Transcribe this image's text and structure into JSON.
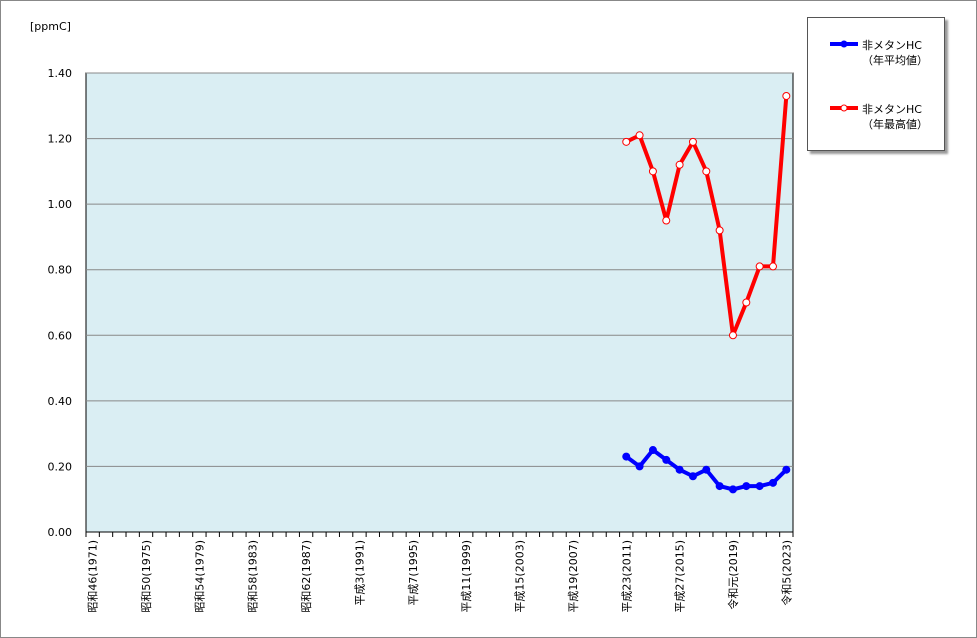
{
  "chart_data": {
    "type": "line",
    "y_unit_label": "[ppmC]",
    "categories": [
      "昭和46(1971)",
      null,
      null,
      null,
      "昭和50(1975)",
      null,
      null,
      null,
      "昭和54(1979)",
      null,
      null,
      null,
      "昭和58(1983)",
      null,
      null,
      null,
      "昭和62(1987)",
      null,
      null,
      null,
      "平成3(1991)",
      null,
      null,
      null,
      "平成7(1995)",
      null,
      null,
      null,
      "平成11(1999)",
      null,
      null,
      null,
      "平成15(2003)",
      null,
      null,
      null,
      "平成19(2007)",
      null,
      null,
      null,
      "平成23(2011)",
      null,
      null,
      null,
      "平成27(2015)",
      null,
      null,
      null,
      "令和元(2019)",
      null,
      null,
      null,
      "令和5(2023)"
    ],
    "series": [
      {
        "name": "非メタンHC\n（年平均値）",
        "color": "#0000ff",
        "marker": "filled",
        "values": [
          null,
          null,
          null,
          null,
          null,
          null,
          null,
          null,
          null,
          null,
          null,
          null,
          null,
          null,
          null,
          null,
          null,
          null,
          null,
          null,
          null,
          null,
          null,
          null,
          null,
          null,
          null,
          null,
          null,
          null,
          null,
          null,
          null,
          null,
          null,
          null,
          null,
          null,
          null,
          null,
          0.23,
          0.2,
          0.25,
          0.22,
          0.19,
          0.17,
          0.19,
          0.14,
          0.13,
          0.14,
          0.14,
          0.15,
          0.19
        ]
      },
      {
        "name": "非メタンHC\n（年最高値）",
        "color": "#ff0000",
        "marker": "open",
        "values": [
          null,
          null,
          null,
          null,
          null,
          null,
          null,
          null,
          null,
          null,
          null,
          null,
          null,
          null,
          null,
          null,
          null,
          null,
          null,
          null,
          null,
          null,
          null,
          null,
          null,
          null,
          null,
          null,
          null,
          null,
          null,
          null,
          null,
          null,
          null,
          null,
          null,
          null,
          null,
          null,
          1.19,
          1.21,
          1.1,
          0.95,
          1.12,
          1.19,
          1.1,
          0.92,
          0.6,
          0.7,
          0.81,
          0.81,
          1.33
        ]
      }
    ],
    "ylim": [
      0,
      1.4
    ],
    "yticks": [
      {
        "value": 0,
        "label": "0.00"
      },
      {
        "value": 0.2,
        "label": "0.20"
      },
      {
        "value": 0.4,
        "label": "0.40"
      },
      {
        "value": 0.6,
        "label": "0.60"
      },
      {
        "value": 0.8,
        "label": "0.80"
      },
      {
        "value": 1.0,
        "label": "1.00"
      },
      {
        "value": 1.2,
        "label": "1.20"
      },
      {
        "value": 1.4,
        "label": "1.40"
      }
    ],
    "grid": true,
    "plot_background": "#daeef3"
  }
}
